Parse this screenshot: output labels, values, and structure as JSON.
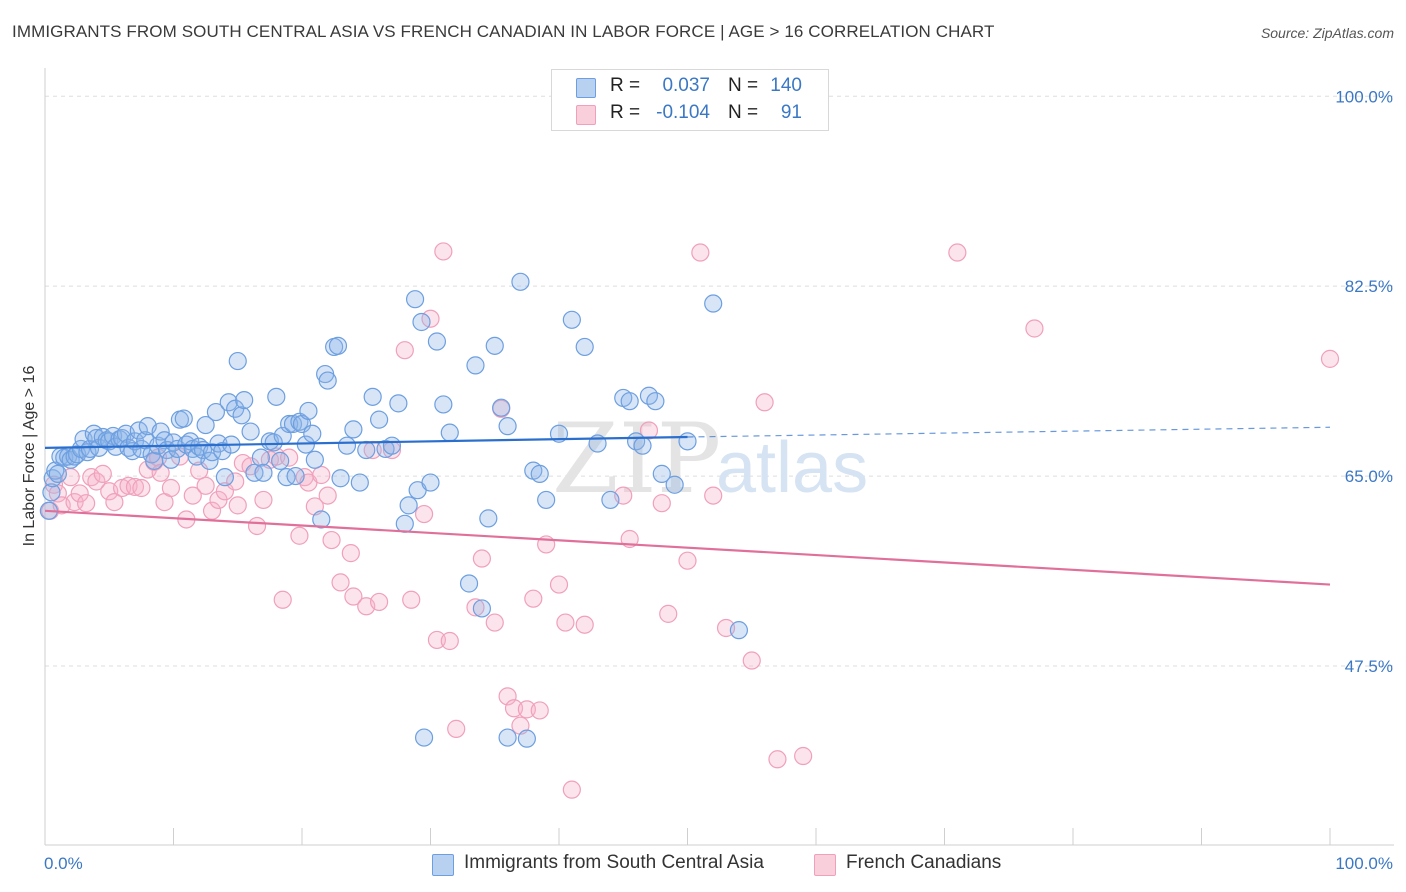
{
  "title": "IMMIGRANTS FROM SOUTH CENTRAL ASIA VS FRENCH CANADIAN IN LABOR FORCE | AGE > 16 CORRELATION CHART",
  "source": "Source: ZipAtlas.com",
  "watermark": "ZIPatlas",
  "colors": {
    "blue": "#6d9fe0",
    "blue_line": "#2b6fce",
    "pink": "#f0a0bb",
    "pink_line": "#e0709a",
    "tick": "#3b78c4"
  },
  "legend": {
    "rows": [
      {
        "label": "R =",
        "r": "0.037",
        "n_label": "N =",
        "n": "140"
      },
      {
        "label": "R =",
        "r": "-0.104",
        "n_label": "N =",
        "n": "91"
      }
    ]
  },
  "bottom_legend": [
    "Immigrants from South Central Asia",
    "French Canadians"
  ],
  "chart_data": {
    "type": "scatter",
    "ylabel": "In Labor Force | Age > 16",
    "xlabel": "",
    "x_tick_labels": [
      "0.0%",
      "100.0%"
    ],
    "y_tick_labels": [
      "100.0%",
      "82.5%",
      "65.0%",
      "47.5%"
    ],
    "xlim": [
      0,
      100
    ],
    "ylim": [
      31,
      101.5
    ],
    "grid": true,
    "series": [
      {
        "name": "Immigrants from South Central Asia",
        "color": "#6d9fe0",
        "trend": {
          "x": [
            0,
            50
          ],
          "y": [
            67.6,
            68.6
          ],
          "dashed_to": [
            100,
            69.5
          ]
        },
        "points": [
          [
            0.3,
            61.8
          ],
          [
            0.5,
            63.5
          ],
          [
            0.6,
            64.8
          ],
          [
            0.8,
            65.5
          ],
          [
            1,
            65.2
          ],
          [
            1.2,
            66.8
          ],
          [
            1.5,
            66.7
          ],
          [
            1.8,
            66.8
          ],
          [
            2,
            66.5
          ],
          [
            2.3,
            66.8
          ],
          [
            2.5,
            67.0
          ],
          [
            2.8,
            67.5
          ],
          [
            3,
            68.4
          ],
          [
            3.3,
            67.2
          ],
          [
            3.5,
            67.5
          ],
          [
            3.8,
            68.9
          ],
          [
            4,
            68.5
          ],
          [
            4.2,
            67.6
          ],
          [
            4.5,
            68.6
          ],
          [
            4.8,
            68.3
          ],
          [
            5,
            68.2
          ],
          [
            5.3,
            68.7
          ],
          [
            5.5,
            67.7
          ],
          [
            5.8,
            68.4
          ],
          [
            6,
            68.5
          ],
          [
            6.3,
            68.9
          ],
          [
            6.5,
            67.6
          ],
          [
            6.8,
            67.3
          ],
          [
            7,
            68.2
          ],
          [
            7.3,
            69.2
          ],
          [
            7.5,
            67.5
          ],
          [
            7.8,
            68.3
          ],
          [
            8,
            69.6
          ],
          [
            8.3,
            67.0
          ],
          [
            8.5,
            66.4
          ],
          [
            8.8,
            67.8
          ],
          [
            9,
            69.1
          ],
          [
            9.3,
            68.3
          ],
          [
            9.5,
            67.4
          ],
          [
            9.8,
            66.5
          ],
          [
            10,
            68.1
          ],
          [
            10.3,
            67.5
          ],
          [
            10.5,
            70.2
          ],
          [
            10.8,
            70.3
          ],
          [
            11,
            67.9
          ],
          [
            11.3,
            68.2
          ],
          [
            11.5,
            67.5
          ],
          [
            11.8,
            66.8
          ],
          [
            12,
            67.7
          ],
          [
            12.3,
            67.4
          ],
          [
            12.5,
            69.7
          ],
          [
            12.8,
            66.4
          ],
          [
            13,
            67.2
          ],
          [
            13.3,
            70.9
          ],
          [
            13.5,
            68.0
          ],
          [
            13.8,
            67.3
          ],
          [
            14,
            64.9
          ],
          [
            14.3,
            71.8
          ],
          [
            14.5,
            67.9
          ],
          [
            14.8,
            71.2
          ],
          [
            15,
            75.6
          ],
          [
            15.3,
            70.6
          ],
          [
            15.5,
            72.0
          ],
          [
            16,
            69.1
          ],
          [
            16.3,
            65.3
          ],
          [
            16.8,
            66.7
          ],
          [
            17,
            65.3
          ],
          [
            17.5,
            68.2
          ],
          [
            17.8,
            68.1
          ],
          [
            18,
            72.3
          ],
          [
            18.3,
            66.4
          ],
          [
            18.5,
            68.7
          ],
          [
            18.8,
            64.9
          ],
          [
            19,
            69.8
          ],
          [
            19.3,
            69.8
          ],
          [
            19.5,
            65.0
          ],
          [
            19.8,
            70.0
          ],
          [
            20,
            69.8
          ],
          [
            20.3,
            67.9
          ],
          [
            20.5,
            71.0
          ],
          [
            20.8,
            68.9
          ],
          [
            21,
            66.5
          ],
          [
            21.5,
            61.0
          ],
          [
            21.8,
            74.4
          ],
          [
            22,
            73.8
          ],
          [
            22.5,
            76.9
          ],
          [
            22.8,
            77.0
          ],
          [
            23,
            64.8
          ],
          [
            23.5,
            67.8
          ],
          [
            24,
            69.3
          ],
          [
            24.5,
            64.4
          ],
          [
            25,
            67.4
          ],
          [
            25.5,
            72.3
          ],
          [
            26,
            70.2
          ],
          [
            26.5,
            67.5
          ],
          [
            27,
            67.8
          ],
          [
            27.5,
            71.7
          ],
          [
            28,
            60.6
          ],
          [
            28.3,
            62.3
          ],
          [
            28.8,
            81.3
          ],
          [
            29,
            63.7
          ],
          [
            29.3,
            79.2
          ],
          [
            30,
            64.4
          ],
          [
            30.5,
            77.4
          ],
          [
            31,
            71.6
          ],
          [
            31.5,
            69.0
          ],
          [
            33,
            55.1
          ],
          [
            33.5,
            75.2
          ],
          [
            34,
            52.8
          ],
          [
            34.5,
            61.1
          ],
          [
            35,
            77.0
          ],
          [
            35.5,
            71.3
          ],
          [
            36,
            69.6
          ],
          [
            37,
            82.9
          ],
          [
            38,
            65.5
          ],
          [
            38.5,
            65.2
          ],
          [
            39,
            62.8
          ],
          [
            40,
            68.9
          ],
          [
            41,
            79.4
          ],
          [
            42,
            76.9
          ],
          [
            43,
            68.0
          ],
          [
            44,
            62.8
          ],
          [
            45,
            72.2
          ],
          [
            45.5,
            71.9
          ],
          [
            46,
            68.2
          ],
          [
            46.5,
            67.8
          ],
          [
            47,
            72.4
          ],
          [
            47.5,
            71.9
          ],
          [
            48,
            65.2
          ],
          [
            49,
            64.2
          ],
          [
            50,
            68.2
          ],
          [
            52,
            80.9
          ],
          [
            54,
            50.8
          ],
          [
            29.5,
            40.9
          ],
          [
            36,
            40.9
          ],
          [
            37.5,
            40.8
          ]
        ]
      },
      {
        "name": "French Canadians",
        "color": "#f0a0bb",
        "trend": {
          "x": [
            0,
            100
          ],
          "y": [
            61.8,
            55.0
          ]
        },
        "points": [
          [
            0.4,
            61.8
          ],
          [
            0.7,
            64.2
          ],
          [
            1,
            63.4
          ],
          [
            1.3,
            62.3
          ],
          [
            2,
            64.9
          ],
          [
            2.3,
            62.6
          ],
          [
            2.7,
            63.4
          ],
          [
            3.2,
            62.5
          ],
          [
            3.6,
            64.9
          ],
          [
            4,
            64.5
          ],
          [
            4.5,
            65.2
          ],
          [
            5,
            63.6
          ],
          [
            5.4,
            62.6
          ],
          [
            6,
            63.9
          ],
          [
            6.5,
            64.1
          ],
          [
            7,
            64.0
          ],
          [
            7.5,
            63.9
          ],
          [
            8,
            65.6
          ],
          [
            8.5,
            66.3
          ],
          [
            8.8,
            66.7
          ],
          [
            9,
            65.3
          ],
          [
            9.3,
            62.6
          ],
          [
            9.8,
            63.9
          ],
          [
            10.5,
            66.8
          ],
          [
            11,
            61.0
          ],
          [
            11.5,
            63.2
          ],
          [
            12,
            65.5
          ],
          [
            12.5,
            64.1
          ],
          [
            13,
            61.8
          ],
          [
            13.5,
            62.8
          ],
          [
            14,
            63.6
          ],
          [
            14.8,
            64.5
          ],
          [
            15,
            62.3
          ],
          [
            15.4,
            66.2
          ],
          [
            16,
            65.9
          ],
          [
            16.5,
            60.4
          ],
          [
            17,
            62.8
          ],
          [
            17.5,
            66.5
          ],
          [
            18,
            66.8
          ],
          [
            18.5,
            53.6
          ],
          [
            19,
            66.7
          ],
          [
            19.8,
            59.5
          ],
          [
            20.2,
            64.9
          ],
          [
            20.5,
            64.4
          ],
          [
            21,
            62.2
          ],
          [
            21.5,
            65.1
          ],
          [
            22,
            63.2
          ],
          [
            22.3,
            59.1
          ],
          [
            23,
            55.2
          ],
          [
            23.8,
            57.9
          ],
          [
            24,
            53.9
          ],
          [
            25,
            53.0
          ],
          [
            25.5,
            67.4
          ],
          [
            26,
            53.4
          ],
          [
            27,
            67.4
          ],
          [
            28,
            76.6
          ],
          [
            28.5,
            53.6
          ],
          [
            29.5,
            61.5
          ],
          [
            30,
            79.5
          ],
          [
            30.5,
            49.9
          ],
          [
            31,
            85.7
          ],
          [
            31.5,
            49.8
          ],
          [
            32,
            41.7
          ],
          [
            33.5,
            52.9
          ],
          [
            34,
            57.4
          ],
          [
            35,
            51.5
          ],
          [
            35.5,
            71.2
          ],
          [
            36,
            44.7
          ],
          [
            36.5,
            43.6
          ],
          [
            37,
            42.0
          ],
          [
            37.5,
            43.5
          ],
          [
            38,
            53.7
          ],
          [
            38.5,
            43.4
          ],
          [
            39,
            58.7
          ],
          [
            40,
            55.0
          ],
          [
            40.5,
            51.5
          ],
          [
            41,
            36.1
          ],
          [
            42,
            51.3
          ],
          [
            45,
            63.2
          ],
          [
            45.5,
            59.2
          ],
          [
            47,
            69.2
          ],
          [
            48,
            62.5
          ],
          [
            48.5,
            52.3
          ],
          [
            50,
            57.2
          ],
          [
            51,
            85.6
          ],
          [
            52,
            63.2
          ],
          [
            53,
            51.0
          ],
          [
            55,
            48.0
          ],
          [
            56,
            71.8
          ],
          [
            57,
            38.9
          ],
          [
            59,
            39.2
          ],
          [
            71,
            85.6
          ],
          [
            77,
            78.6
          ],
          [
            100,
            75.8
          ]
        ]
      }
    ]
  }
}
